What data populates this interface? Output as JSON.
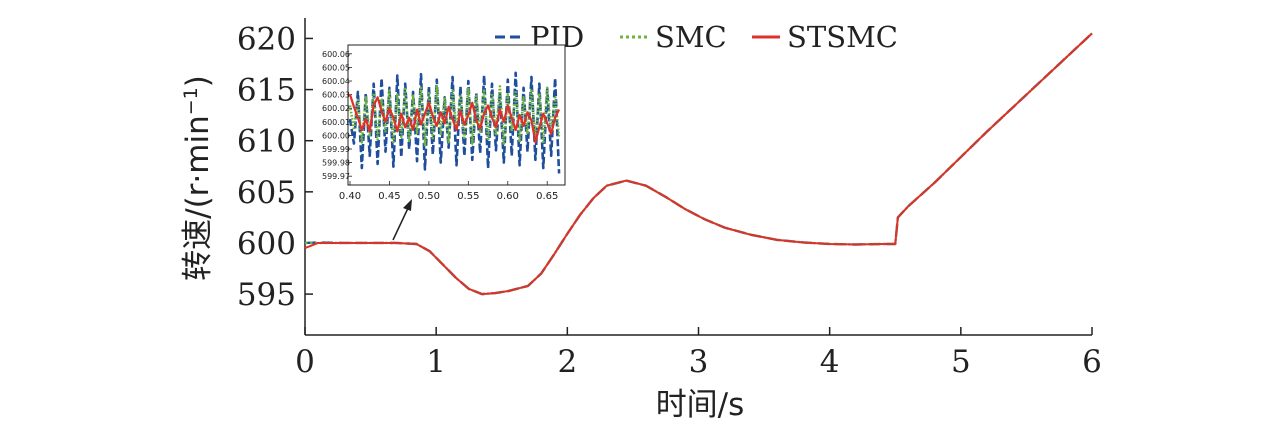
{
  "chart_data": {
    "type": "line",
    "xlabel": "时间/s",
    "ylabel": "转速/(r·min⁻¹)",
    "ylabel_main": "转速/(r·min",
    "ylabel_sup": "−1",
    "ylabel_close": ")",
    "xlim": [
      0,
      6
    ],
    "ylim": [
      591,
      622
    ],
    "x_ticks": [
      "0",
      "1",
      "2",
      "3",
      "4",
      "5",
      "6"
    ],
    "y_ticks": [
      "595",
      "600",
      "605",
      "610",
      "615",
      "620"
    ],
    "grid": false,
    "legend_position": "top-center",
    "x": [
      0,
      0.1,
      0.3,
      0.5,
      0.7,
      0.85,
      0.95,
      1.05,
      1.15,
      1.25,
      1.35,
      1.45,
      1.55,
      1.7,
      1.8,
      1.9,
      2.0,
      2.1,
      2.2,
      2.3,
      2.45,
      2.6,
      2.75,
      2.9,
      3.05,
      3.2,
      3.4,
      3.6,
      3.8,
      4.0,
      4.2,
      4.4,
      4.5,
      4.52,
      4.6,
      4.8,
      5.0,
      5.2,
      5.4,
      5.6,
      5.8,
      6.0
    ],
    "series": [
      {
        "name": "PID",
        "color": "#1f4e9c",
        "style": "dashed",
        "values": [
          600.0,
          600.05,
          600.0,
          600.0,
          600.0,
          599.9,
          599.2,
          597.9,
          596.6,
          595.5,
          595.0,
          595.1,
          595.3,
          595.8,
          597.0,
          598.9,
          600.9,
          602.8,
          604.4,
          605.6,
          606.1,
          605.6,
          604.5,
          603.3,
          602.3,
          601.5,
          600.8,
          600.3,
          600.05,
          599.9,
          599.85,
          599.9,
          599.9,
          602.5,
          603.6,
          605.9,
          608.4,
          610.9,
          613.3,
          615.7,
          618.1,
          620.5
        ]
      },
      {
        "name": "SMC",
        "color": "#6db33f",
        "style": "dotted",
        "values": [
          600.0,
          600.0,
          600.0,
          600.0,
          600.0,
          599.9,
          599.2,
          597.9,
          596.6,
          595.5,
          595.0,
          595.1,
          595.3,
          595.8,
          597.0,
          598.9,
          600.9,
          602.8,
          604.4,
          605.6,
          606.1,
          605.6,
          604.5,
          603.3,
          602.3,
          601.5,
          600.8,
          600.3,
          600.05,
          599.9,
          599.85,
          599.9,
          599.9,
          602.5,
          603.6,
          605.9,
          608.4,
          610.9,
          613.3,
          615.7,
          618.1,
          620.5
        ]
      },
      {
        "name": "STSMC",
        "color": "#e0302a",
        "style": "solid",
        "values": [
          599.5,
          600.0,
          600.0,
          600.0,
          600.0,
          599.9,
          599.2,
          597.9,
          596.6,
          595.5,
          595.0,
          595.1,
          595.3,
          595.8,
          597.0,
          598.9,
          600.9,
          602.8,
          604.4,
          605.6,
          606.1,
          605.6,
          604.5,
          603.3,
          602.3,
          601.5,
          600.8,
          600.3,
          600.05,
          599.9,
          599.85,
          599.9,
          599.9,
          602.5,
          603.6,
          605.9,
          608.4,
          610.9,
          613.3,
          615.7,
          618.1,
          620.5
        ]
      }
    ],
    "inset": {
      "xlim": [
        0.4,
        0.67
      ],
      "ylim": [
        599.965,
        600.065
      ],
      "x_ticks": [
        "0.40",
        "0.45",
        "0.50",
        "0.55",
        "0.60",
        "0.65"
      ],
      "y_ticks": [
        "600.06",
        "600.05",
        "600.04",
        "600.03",
        "600.02",
        "600.01",
        "600.00",
        "599.99",
        "599.98",
        "599.97"
      ],
      "x": [
        0.4,
        0.405,
        0.41,
        0.415,
        0.42,
        0.425,
        0.43,
        0.435,
        0.44,
        0.445,
        0.45,
        0.455,
        0.46,
        0.465,
        0.47,
        0.475,
        0.48,
        0.485,
        0.49,
        0.495,
        0.5,
        0.505,
        0.51,
        0.515,
        0.52,
        0.525,
        0.53,
        0.535,
        0.54,
        0.545,
        0.55,
        0.555,
        0.56,
        0.565,
        0.57,
        0.575,
        0.58,
        0.585,
        0.59,
        0.595,
        0.6,
        0.605,
        0.61,
        0.615,
        0.62,
        0.625,
        0.63,
        0.635,
        0.64,
        0.645,
        0.65,
        0.655,
        0.66,
        0.665
      ],
      "series": [
        {
          "name": "PID",
          "values": [
            600.012,
            599.994,
            600.032,
            599.976,
            600.031,
            599.985,
            600.038,
            599.979,
            600.042,
            599.988,
            600.035,
            599.977,
            600.044,
            599.984,
            600.038,
            599.99,
            600.032,
            599.981,
            600.045,
            599.975,
            600.036,
            599.986,
            600.041,
            599.98,
            600.028,
            599.991,
            600.043,
            599.978,
            600.036,
            599.985,
            600.04,
            599.982,
            600.031,
            599.987,
            600.044,
            599.976,
            600.038,
            599.989,
            600.032,
            599.98,
            600.041,
            599.985,
            600.046,
            599.978,
            600.035,
            599.988,
            600.043,
            599.982,
            600.038,
            599.976,
            600.034,
            599.985,
            600.042,
            599.972
          ]
        },
        {
          "name": "SMC",
          "values": [
            600.022,
            600.004,
            600.026,
            599.995,
            600.028,
            600.0,
            600.031,
            599.997,
            600.027,
            600.003,
            600.033,
            599.994,
            600.03,
            599.999,
            600.034,
            599.996,
            600.029,
            600.002,
            600.035,
            599.993,
            600.031,
            599.998,
            600.036,
            600.001,
            600.028,
            599.995,
            600.033,
            600.004,
            600.03,
            599.997,
            600.035,
            599.994,
            600.029,
            600.002,
            600.034,
            599.996,
            600.031,
            600.0,
            600.036,
            599.993,
            600.03,
            600.003,
            600.033,
            599.995,
            600.028,
            600.001,
            600.034,
            599.997,
            600.031,
            599.994,
            600.035,
            600.002,
            600.029,
            599.998
          ]
        },
        {
          "name": "STSMC",
          "values": [
            600.03,
            600.021,
            600.013,
            600.004,
            600.012,
            600.003,
            600.022,
            600.028,
            600.018,
            600.01,
            600.02,
            600.013,
            600.003,
            600.016,
            600.006,
            600.013,
            600.004,
            600.019,
            600.008,
            600.016,
            600.024,
            600.014,
            600.007,
            600.017,
            600.009,
            600.021,
            600.012,
            600.004,
            600.018,
            600.008,
            600.015,
            600.024,
            600.011,
            600.005,
            600.016,
            600.022,
            600.013,
            600.006,
            600.019,
            600.01,
            600.022,
            600.013,
            600.004,
            600.015,
            600.007,
            600.017,
            600.011,
            599.995,
            600.006,
            600.016,
            600.009,
            600.001,
            600.013,
            600.019
          ]
        }
      ]
    }
  }
}
